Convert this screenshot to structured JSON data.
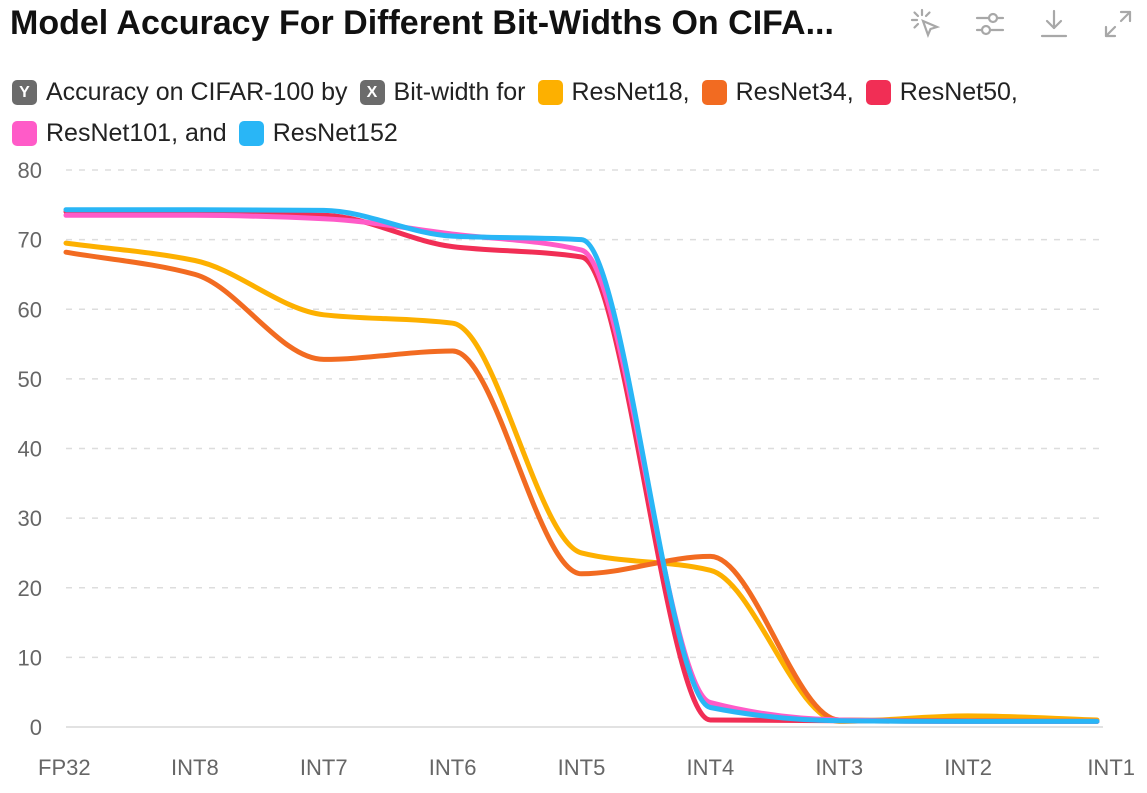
{
  "header": {
    "title": "Model Accuracy For Different Bit-Widths On CIFA..."
  },
  "toolbar": {
    "icons": [
      "select-cursor-icon",
      "sliders-icon",
      "download-icon",
      "expand-icon"
    ]
  },
  "legend": {
    "y_chip": "Y",
    "y_text": "Accuracy on CIFAR-100 by",
    "x_chip": "X",
    "x_text": "Bit-width for",
    "items": [
      {
        "label": "ResNet18,"
      },
      {
        "label": "ResNet34,"
      },
      {
        "label": "ResNet50,"
      },
      {
        "label": "ResNet101, and"
      },
      {
        "label": "ResNet152"
      }
    ]
  },
  "chart_data": {
    "type": "line",
    "title": "Model Accuracy For Different Bit-Widths On CIFA...",
    "xlabel": "",
    "ylabel": "",
    "categories": [
      "FP32",
      "INT8",
      "INT7",
      "INT6",
      "INT5",
      "INT4",
      "INT3",
      "INT2",
      "INT1"
    ],
    "ylim": [
      0,
      80
    ],
    "yticks": [
      0,
      10,
      20,
      30,
      40,
      50,
      60,
      70,
      80
    ],
    "grid": true,
    "legend_position": "top",
    "series": [
      {
        "name": "ResNet18",
        "color": "#FDB000",
        "values": [
          69.5,
          67.0,
          59.2,
          58.0,
          25.0,
          22.5,
          0.8,
          1.6,
          1.0
        ]
      },
      {
        "name": "ResNet34",
        "color": "#F26B21",
        "values": [
          68.2,
          65.0,
          52.8,
          54.0,
          22.0,
          24.5,
          1.0,
          0.9,
          0.8
        ]
      },
      {
        "name": "ResNet50",
        "color": "#F12E55",
        "values": [
          74.0,
          73.7,
          73.5,
          69.0,
          67.5,
          1.0,
          0.9,
          0.8,
          0.8
        ]
      },
      {
        "name": "ResNet101",
        "color": "#FF5BC8",
        "values": [
          73.5,
          73.5,
          73.0,
          70.8,
          68.5,
          3.5,
          1.0,
          0.8,
          0.8
        ]
      },
      {
        "name": "ResNet152",
        "color": "#29B6F6",
        "values": [
          74.3,
          74.3,
          74.2,
          70.5,
          70.0,
          2.8,
          0.9,
          0.8,
          0.8
        ]
      }
    ]
  }
}
